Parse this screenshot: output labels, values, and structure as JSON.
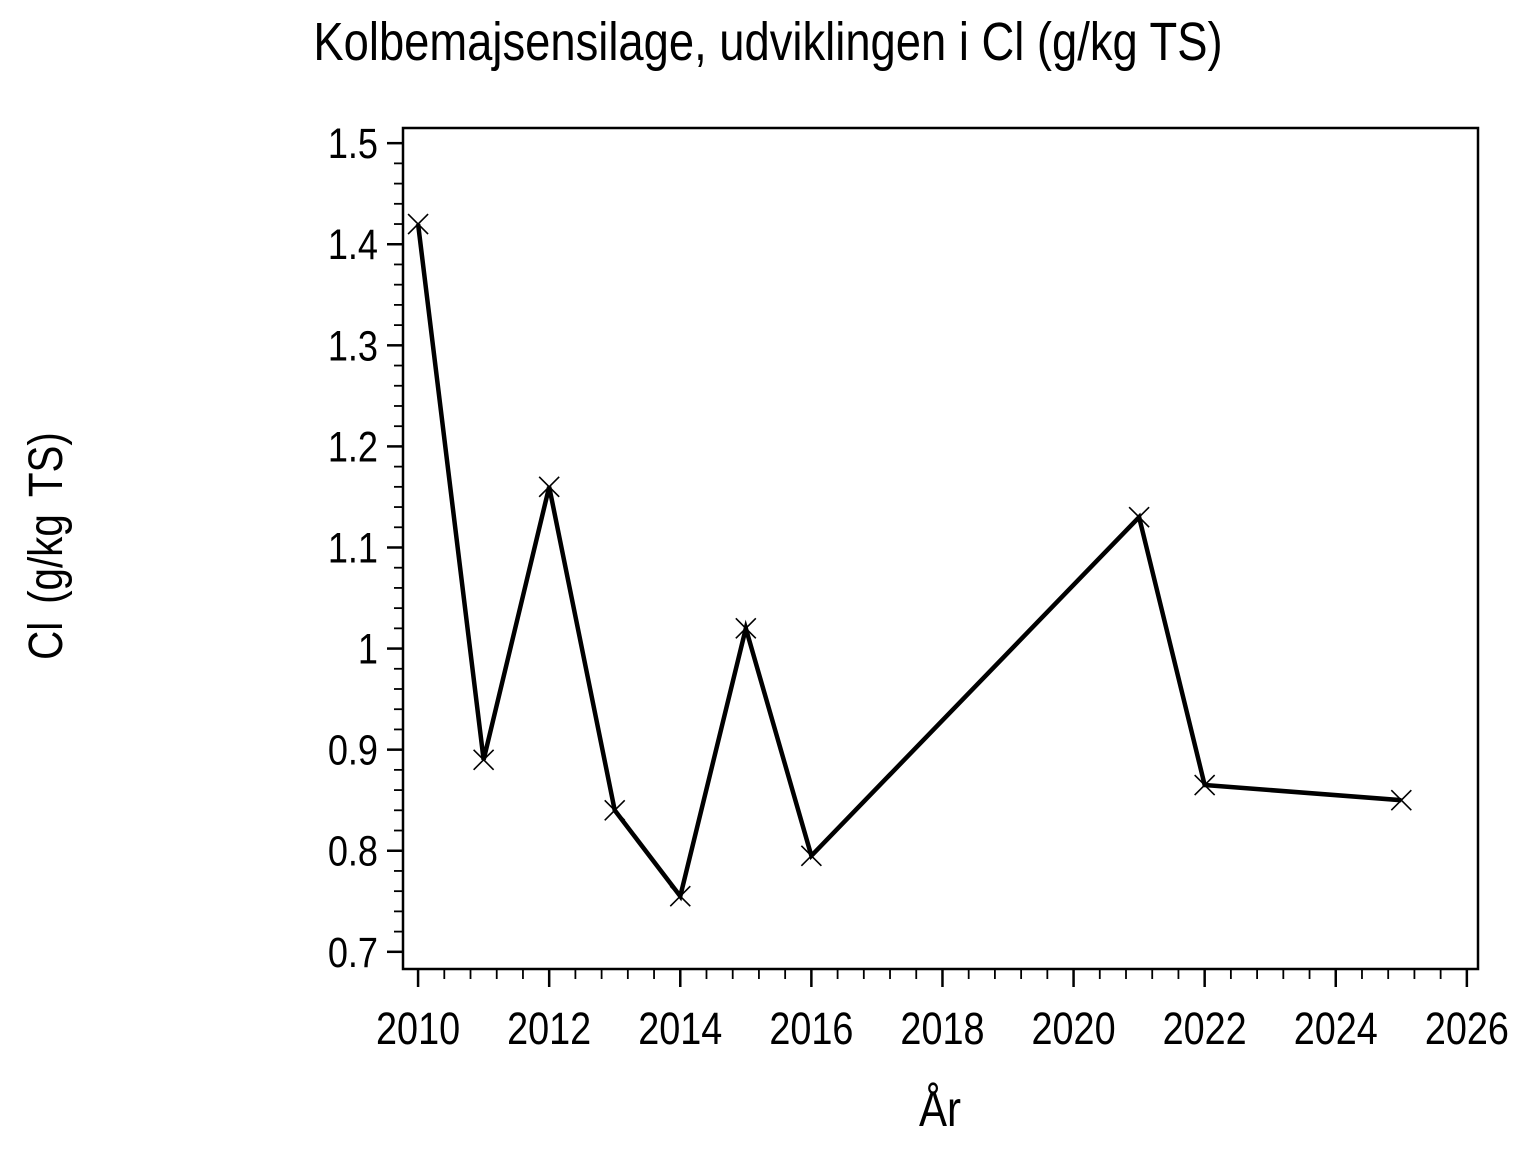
{
  "page": {
    "background": "#ffffff",
    "foreground": "#000000"
  },
  "chart_data": {
    "type": "line",
    "title": "Kolbemajsensilage, udviklingen i Cl (g/kg TS)",
    "xlabel": "År",
    "ylabel": "Cl (g/kg TS)",
    "x": [
      2010,
      2011,
      2012,
      2013,
      2014,
      2015,
      2016,
      2021,
      2022,
      2025
    ],
    "y": [
      1.42,
      0.89,
      1.16,
      0.84,
      0.755,
      1.02,
      0.795,
      1.13,
      0.865,
      0.85
    ],
    "marker": "x-cross",
    "line_color": "#000000",
    "marker_color": "#000000",
    "xlim": [
      2009.77,
      2026.17
    ],
    "ylim": [
      0.683,
      1.515
    ],
    "x_major_ticks": [
      2010,
      2012,
      2014,
      2016,
      2018,
      2020,
      2022,
      2024,
      2026
    ],
    "x_tick_labels": [
      "2010",
      "2012",
      "2014",
      "2016",
      "2018",
      "2020",
      "2022",
      "2024",
      "2026"
    ],
    "x_minor_tick_step": 0.4,
    "y_major_ticks": [
      1.5,
      1.4,
      1.3,
      1.2,
      1.1,
      1.0,
      0.9,
      0.8,
      0.7
    ],
    "y_tick_labels": [
      "1.5",
      "1.4",
      "1.3",
      "1.2",
      "1.1",
      "1",
      "0.9",
      "0.8",
      "0.7"
    ],
    "y_minor_tick_step": 0.02,
    "grid": false,
    "legend": false,
    "frame": true
  }
}
